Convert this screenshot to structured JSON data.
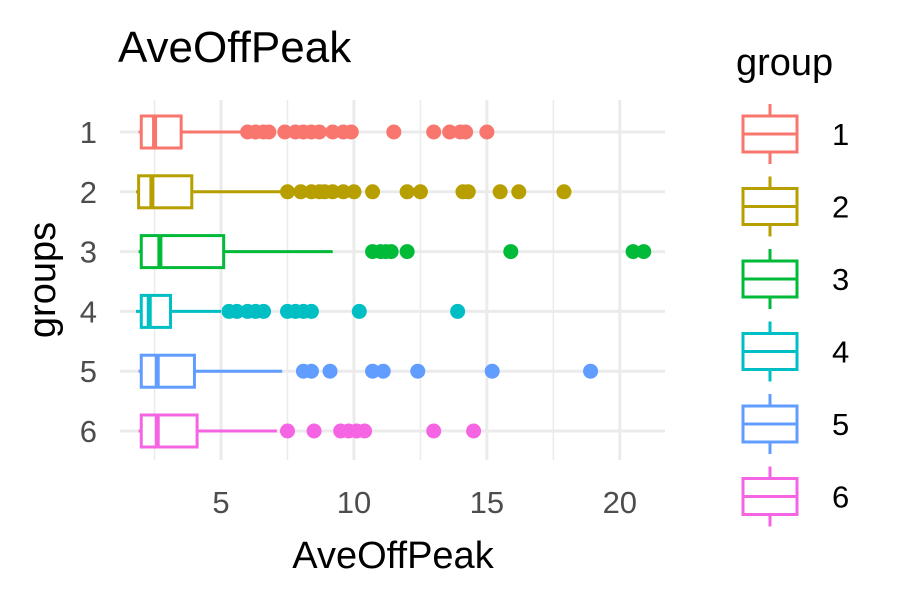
{
  "chart_data": {
    "type": "boxplot",
    "orientation": "horizontal",
    "title": "AveOffPeak",
    "xlabel": "AveOffPeak",
    "ylabel": "groups",
    "xlim": [
      1.2,
      21.7
    ],
    "x_ticks": [
      5,
      10,
      15,
      20
    ],
    "x_tick_labels": [
      "5",
      "10",
      "15",
      "20"
    ],
    "categories": [
      "1",
      "2",
      "3",
      "4",
      "5",
      "6"
    ],
    "grid": true,
    "legend": {
      "title": "group",
      "position": "right"
    },
    "series": [
      {
        "name": "1",
        "color": "#F8766D",
        "q1": 2.0,
        "median": 2.5,
        "q3": 3.5,
        "whisker_low": 1.9,
        "whisker_high": 5.8,
        "outliers": [
          6.0,
          6.3,
          6.6,
          6.8,
          7.4,
          7.8,
          8.1,
          8.4,
          8.7,
          9.2,
          9.6,
          9.9,
          11.5,
          13.0,
          13.6,
          14.0,
          14.2,
          15.0
        ]
      },
      {
        "name": "2",
        "color": "#B79F00",
        "q1": 1.9,
        "median": 2.4,
        "q3": 3.9,
        "whisker_low": 1.8,
        "whisker_high": 7.3,
        "outliers": [
          7.5,
          8.0,
          8.4,
          8.7,
          8.9,
          9.2,
          9.6,
          10.0,
          10.7,
          12.0,
          12.5,
          14.1,
          14.3,
          15.5,
          16.2,
          17.9
        ]
      },
      {
        "name": "3",
        "color": "#00BA38",
        "q1": 2.0,
        "median": 2.7,
        "q3": 5.1,
        "whisker_low": 1.9,
        "whisker_high": 9.2,
        "outliers": [
          10.7,
          11.0,
          11.2,
          11.4,
          12.0,
          15.9,
          20.5,
          20.9
        ]
      },
      {
        "name": "4",
        "color": "#00BFC4",
        "q1": 2.0,
        "median": 2.3,
        "q3": 3.1,
        "whisker_low": 1.8,
        "whisker_high": 5.0,
        "outliers": [
          5.3,
          5.6,
          6.0,
          6.3,
          6.6,
          7.5,
          7.8,
          8.1,
          8.4,
          10.2,
          13.9
        ]
      },
      {
        "name": "5",
        "color": "#619CFF",
        "q1": 2.0,
        "median": 2.6,
        "q3": 4.0,
        "whisker_low": 1.9,
        "whisker_high": 7.3,
        "outliers": [
          8.1,
          8.4,
          9.1,
          10.7,
          11.1,
          12.4,
          15.2,
          18.9
        ]
      },
      {
        "name": "6",
        "color": "#F564E3",
        "q1": 2.0,
        "median": 2.6,
        "q3": 4.1,
        "whisker_low": 1.9,
        "whisker_high": 7.1,
        "outliers": [
          7.5,
          8.5,
          9.5,
          9.8,
          10.1,
          10.4,
          13.0,
          14.5
        ]
      }
    ]
  }
}
